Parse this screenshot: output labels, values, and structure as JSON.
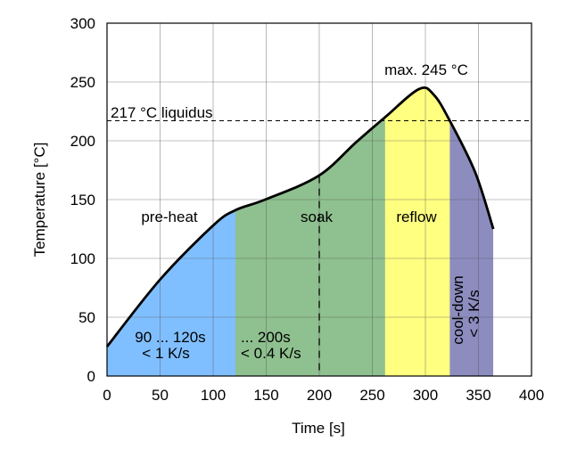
{
  "chart_data": {
    "type": "area",
    "title": "",
    "xlabel": "Time [s]",
    "ylabel": "Temperature [°C]",
    "xlim": [
      0,
      400
    ],
    "ylim": [
      0,
      300
    ],
    "xticks": [
      0,
      50,
      100,
      150,
      200,
      250,
      300,
      350,
      400
    ],
    "yticks": [
      0,
      50,
      100,
      150,
      200,
      250,
      300
    ],
    "grid": true,
    "curve": {
      "x": [
        0,
        50,
        100,
        121,
        149,
        199,
        235,
        262,
        294,
        308,
        323,
        347,
        364
      ],
      "y": [
        25,
        82,
        128,
        141,
        150,
        170,
        199,
        220,
        244,
        239,
        217,
        173,
        125
      ]
    },
    "phases": [
      {
        "name": "pre-heat",
        "start": 0,
        "end": 121,
        "color": "#80bfff",
        "notes": [
          "90 ... 120s",
          "< 1 K/s"
        ]
      },
      {
        "name": "soak",
        "start": 121,
        "end": 262,
        "color": "#8fc08f",
        "notes": [
          "... 200s",
          "< 0.4 K/s"
        ]
      },
      {
        "name": "reflow",
        "start": 262,
        "end": 323,
        "color": "#ffff80",
        "notes": []
      },
      {
        "name": "cool-down",
        "start": 323,
        "end": 364,
        "color": "#8c8cbf",
        "notes": [
          "< 3 K/s"
        ]
      }
    ],
    "liquidus": {
      "y": 217,
      "label": "217 °C liquidus"
    },
    "soak_marker_x": 200,
    "peak_label": "max. 245 °C"
  }
}
